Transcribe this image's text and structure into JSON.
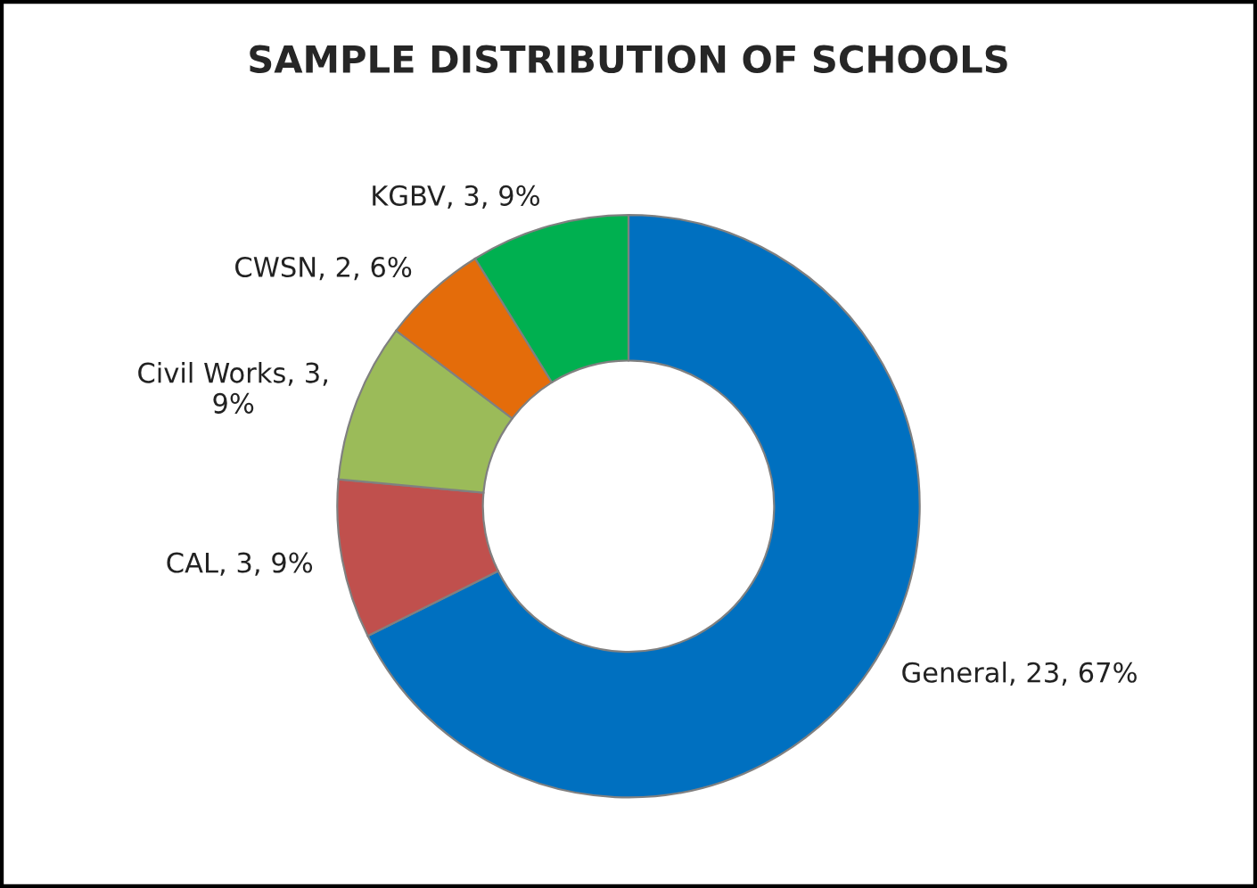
{
  "chart_data": {
    "type": "donut",
    "title": "SAMPLE DISTRIBUTION OF SCHOOLS",
    "categories": [
      "General",
      "CAL",
      "Civil Works",
      "CWSN",
      "KGBV"
    ],
    "values": [
      23,
      3,
      3,
      2,
      3
    ],
    "value_labels": [
      "23, 67%",
      "3, 9%",
      "3,\n9%",
      "2, 6%",
      "3, 9%"
    ],
    "colors": [
      "#0070c0",
      "#c0504d",
      "#9bbb59",
      "#e46c0a",
      "#00b050"
    ],
    "legend": false
  }
}
